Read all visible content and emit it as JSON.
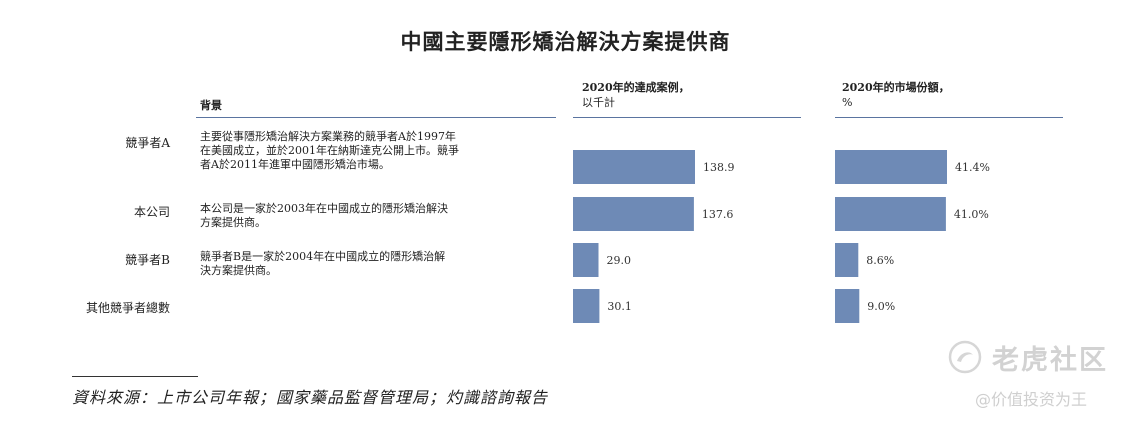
{
  "title": "中國主要隱形矯治解決方案提供商",
  "headers": {
    "background": "背景",
    "cases": "2020年的達成案例，",
    "cases_unit": "以千計",
    "share": "2020年的市場份額，",
    "share_unit": "%"
  },
  "rows": [
    {
      "label": "競爭者A",
      "desc": "主要從事隱形矯治解決方案業務的競爭者A於1997年在美國成立，並於2001年在納斯達克公開上市。競爭者A於2011年進軍中國隱形矯治市場。"
    },
    {
      "label": "本公司",
      "desc": "本公司是一家於2003年在中國成立的隱形矯治解決方案提供商。"
    },
    {
      "label": "競爭者B",
      "desc": "競爭者B是一家於2004年在中國成立的隱形矯治解決方案提供商。"
    },
    {
      "label": "其他競爭者總數",
      "desc": ""
    }
  ],
  "chart_data": [
    {
      "type": "bar",
      "orientation": "horizontal",
      "categories": [
        "競爭者A",
        "本公司",
        "競爭者B",
        "其他競爭者總數"
      ],
      "values": [
        138.9,
        137.6,
        29.0,
        30.1
      ],
      "labels": [
        "138.9",
        "137.6",
        "29.0",
        "30.1"
      ],
      "title": "2020年的達成案例，以千計",
      "color": "#6e8ab6"
    },
    {
      "type": "bar",
      "orientation": "horizontal",
      "categories": [
        "競爭者A",
        "本公司",
        "競爭者B",
        "其他競爭者總數"
      ],
      "values": [
        41.4,
        41.0,
        8.6,
        9.0
      ],
      "labels": [
        "41.4%",
        "41.0%",
        "8.6%",
        "9.0%"
      ],
      "title": "2020年的市場份額，%",
      "color": "#6e8ab6"
    }
  ],
  "source": "資料來源：上市公司年報；國家藥品監督管理局；灼識諮詢報告",
  "watermark": {
    "name": "老虎社区",
    "tag": "@价值投资为王",
    "icon": "tiger-swirl-icon"
  }
}
